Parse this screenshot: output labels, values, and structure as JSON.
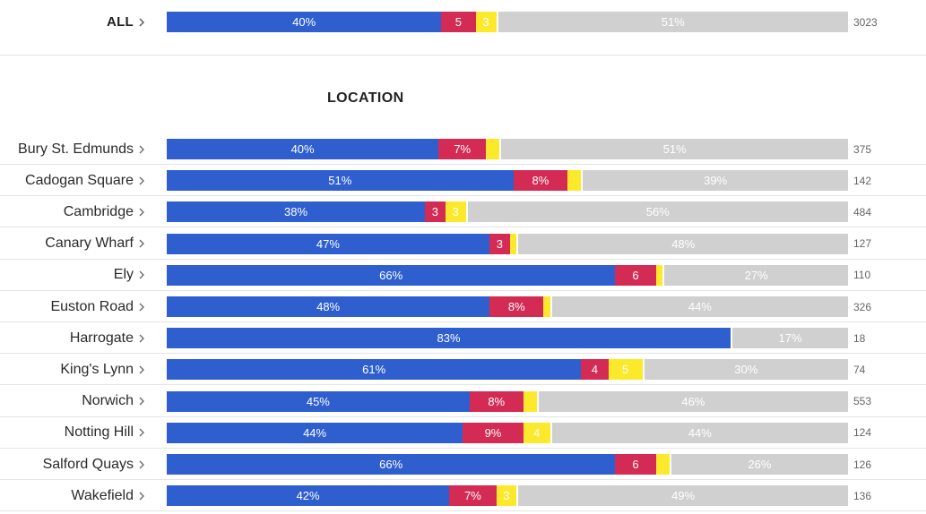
{
  "colors": {
    "blue": "#2f5fcf",
    "red": "#d42b54",
    "yellow": "#fde92c",
    "grey": "#d0d0d0"
  },
  "overall": {
    "label": "ALL",
    "segments": [
      {
        "value": 40,
        "text": "40%"
      },
      {
        "value": 5,
        "text": "5"
      },
      {
        "value": 3,
        "text": "3"
      },
      {
        "value": 51,
        "text": "51%"
      }
    ],
    "count": "3023"
  },
  "section_title": "LOCATION",
  "chart_data": {
    "type": "bar",
    "stacked": true,
    "orientation": "horizontal",
    "title": "LOCATION",
    "categories": [
      "Bury St. Edmunds",
      "Cadogan Square",
      "Cambridge",
      "Canary Wharf",
      "Ely",
      "Euston Road",
      "Harrogate",
      "King's Lynn",
      "Norwich",
      "Notting Hill",
      "Salford Quays",
      "Wakefield"
    ],
    "series": [
      {
        "values": [
          40,
          51,
          38,
          47,
          66,
          48,
          83,
          61,
          45,
          44,
          66,
          42
        ]
      },
      {
        "values": [
          7,
          8,
          3,
          3,
          6,
          8,
          0,
          4,
          8,
          9,
          6,
          7
        ]
      },
      {
        "values": [
          2,
          2,
          3,
          1,
          1,
          1,
          0,
          5,
          2,
          4,
          2,
          3
        ]
      },
      {
        "values": [
          51,
          39,
          56,
          48,
          27,
          44,
          17,
          30,
          46,
          44,
          26,
          49
        ]
      }
    ],
    "segment_labels": [
      [
        "40%",
        "7%",
        "",
        "51%"
      ],
      [
        "51%",
        "8%",
        "",
        "39%"
      ],
      [
        "38%",
        "3",
        "3",
        "56%"
      ],
      [
        "47%",
        "3",
        "",
        "48%"
      ],
      [
        "66%",
        "6",
        "",
        "27%"
      ],
      [
        "48%",
        "8%",
        "",
        "44%"
      ],
      [
        "83%",
        "",
        "",
        "17%"
      ],
      [
        "61%",
        "4",
        "5",
        "30%"
      ],
      [
        "45%",
        "8%",
        "",
        "46%"
      ],
      [
        "44%",
        "9%",
        "4",
        "44%"
      ],
      [
        "66%",
        "6",
        "",
        "26%"
      ],
      [
        "42%",
        "7%",
        "3",
        "49%"
      ]
    ],
    "counts": [
      "375",
      "142",
      "484",
      "127",
      "110",
      "326",
      "18",
      "74",
      "553",
      "124",
      "126",
      "136"
    ]
  }
}
